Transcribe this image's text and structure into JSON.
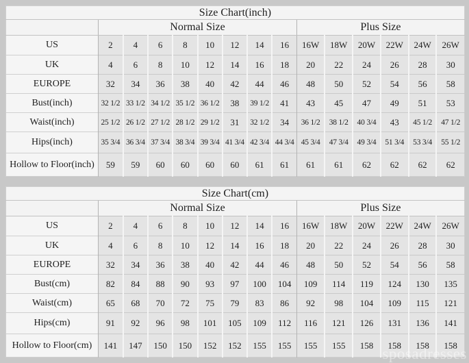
{
  "watermark": "sposadresses",
  "colors": {
    "page_bg": "#c8c8c8",
    "table_bg": "#f4f4f4",
    "data_cell_bg": "#e4e4e4",
    "label_cell_bg": "#f5f5f5",
    "text": "#1e1e1e",
    "divider": "#b3b3b3"
  },
  "chart_data": [
    {
      "type": "table",
      "title": "Size Chart(inch)",
      "column_groups": [
        "Normal Size",
        "Plus Size"
      ],
      "rows": [
        {
          "label": "US",
          "normal": [
            "2",
            "4",
            "6",
            "8",
            "10",
            "12",
            "14",
            "16"
          ],
          "plus": [
            "16W",
            "18W",
            "20W",
            "22W",
            "24W",
            "26W"
          ]
        },
        {
          "label": "UK",
          "normal": [
            "4",
            "6",
            "8",
            "10",
            "12",
            "14",
            "16",
            "18"
          ],
          "plus": [
            "20",
            "22",
            "24",
            "26",
            "28",
            "30"
          ]
        },
        {
          "label": "EUROPE",
          "normal": [
            "32",
            "34",
            "36",
            "38",
            "40",
            "42",
            "44",
            "46"
          ],
          "plus": [
            "48",
            "50",
            "52",
            "54",
            "56",
            "58"
          ]
        },
        {
          "label": "Bust(inch)",
          "normal": [
            "32 1/2",
            "33 1/2",
            "34 1/2",
            "35 1/2",
            "36 1/2",
            "38",
            "39 1/2",
            "41"
          ],
          "plus": [
            "43",
            "45",
            "47",
            "49",
            "51",
            "53"
          ]
        },
        {
          "label": "Waist(inch)",
          "normal": [
            "25 1/2",
            "26 1/2",
            "27 1/2",
            "28 1/2",
            "29 1/2",
            "31",
            "32 1/2",
            "34"
          ],
          "plus": [
            "36 1/2",
            "38 1/2",
            "40 3/4",
            "43",
            "45 1/2",
            "47 1/2"
          ]
        },
        {
          "label": "Hips(inch)",
          "normal": [
            "35 3/4",
            "36 3/4",
            "37 3/4",
            "38 3/4",
            "39 3/4",
            "41 3/4",
            "42 3/4",
            "44 3/4"
          ],
          "plus": [
            "45 3/4",
            "47 3/4",
            "49 3/4",
            "51 3/4",
            "53 3/4",
            "55 1/2"
          ]
        },
        {
          "label": "Hollow to Floor(inch)",
          "normal": [
            "59",
            "59",
            "60",
            "60",
            "60",
            "60",
            "61",
            "61"
          ],
          "plus": [
            "61",
            "61",
            "62",
            "62",
            "62",
            "62"
          ]
        }
      ]
    },
    {
      "type": "table",
      "title": "Size Chart(cm)",
      "column_groups": [
        "Normal Size",
        "Plus Size"
      ],
      "rows": [
        {
          "label": "US",
          "normal": [
            "2",
            "4",
            "6",
            "8",
            "10",
            "12",
            "14",
            "16"
          ],
          "plus": [
            "16W",
            "18W",
            "20W",
            "22W",
            "24W",
            "26W"
          ]
        },
        {
          "label": "UK",
          "normal": [
            "4",
            "6",
            "8",
            "10",
            "12",
            "14",
            "16",
            "18"
          ],
          "plus": [
            "20",
            "22",
            "24",
            "26",
            "28",
            "30"
          ]
        },
        {
          "label": "EUROPE",
          "normal": [
            "32",
            "34",
            "36",
            "38",
            "40",
            "42",
            "44",
            "46"
          ],
          "plus": [
            "48",
            "50",
            "52",
            "54",
            "56",
            "58"
          ]
        },
        {
          "label": "Bust(cm)",
          "normal": [
            "82",
            "84",
            "88",
            "90",
            "93",
            "97",
            "100",
            "104"
          ],
          "plus": [
            "109",
            "114",
            "119",
            "124",
            "130",
            "135"
          ]
        },
        {
          "label": "Waist(cm)",
          "normal": [
            "65",
            "68",
            "70",
            "72",
            "75",
            "79",
            "83",
            "86"
          ],
          "plus": [
            "92",
            "98",
            "104",
            "109",
            "115",
            "121"
          ]
        },
        {
          "label": "Hips(cm)",
          "normal": [
            "91",
            "92",
            "96",
            "98",
            "101",
            "105",
            "109",
            "112"
          ],
          "plus": [
            "116",
            "121",
            "126",
            "131",
            "136",
            "141"
          ]
        },
        {
          "label": "Hollow to Floor(cm)",
          "normal": [
            "141",
            "147",
            "150",
            "150",
            "152",
            "152",
            "155",
            "155"
          ],
          "plus": [
            "155",
            "155",
            "158",
            "158",
            "158",
            "158"
          ]
        }
      ]
    }
  ]
}
